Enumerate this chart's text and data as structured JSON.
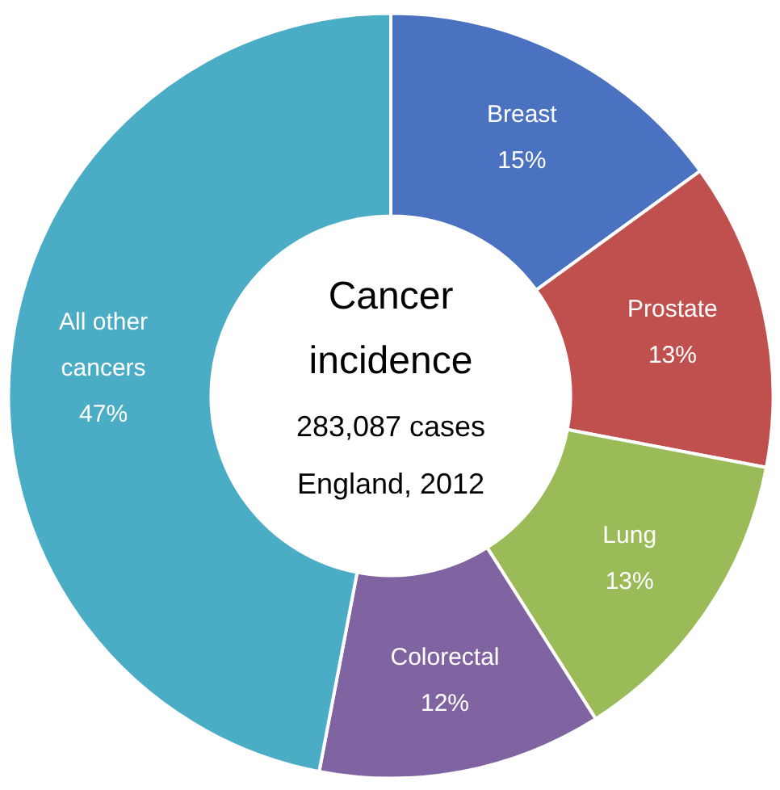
{
  "chart_data": {
    "type": "donut",
    "title": "Cancer incidence",
    "annotations": [
      "283,087 cases",
      "England, 2012"
    ],
    "categories": [
      "Breast",
      "Prostate",
      "Lung",
      "Colorectal",
      "All other cancers"
    ],
    "values": [
      15,
      13,
      13,
      12,
      47
    ],
    "value_labels": [
      "15%",
      "13%",
      "13%",
      "12%",
      "47%"
    ],
    "colors": [
      "#4a72c0",
      "#c0504d",
      "#9bbb59",
      "#8064a2",
      "#4bacc6"
    ]
  }
}
